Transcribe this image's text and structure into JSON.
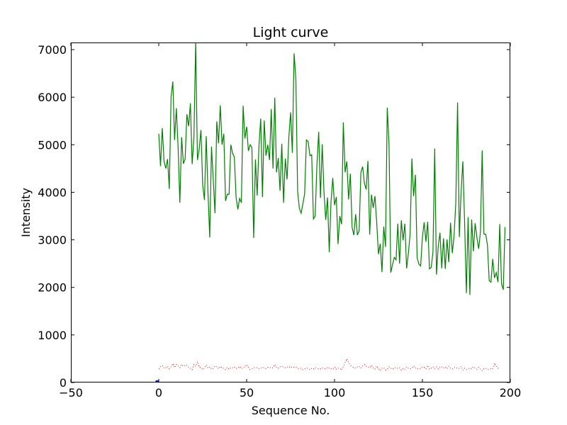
{
  "chart_data": {
    "type": "line",
    "title": "Light curve",
    "xlabel": "Sequence No.",
    "ylabel": "Intensity",
    "xlim": [
      -50,
      200
    ],
    "ylim": [
      0,
      7150
    ],
    "xticks": [
      "−50",
      "0",
      "50",
      "100",
      "150",
      "200"
    ],
    "yticks": [
      "0",
      "1000",
      "2000",
      "3000",
      "4000",
      "5000",
      "6000",
      "7000"
    ],
    "xtick_values": [
      -50,
      0,
      50,
      100,
      150,
      200
    ],
    "ytick_values": [
      0,
      1000,
      2000,
      3000,
      4000,
      5000,
      6000,
      7000
    ],
    "grid": false,
    "series": [
      {
        "style": "solid",
        "color": "#008000",
        "x_start": 0,
        "values": [
          5230,
          4550,
          5350,
          4650,
          4500,
          4700,
          4070,
          6000,
          6330,
          5100,
          5770,
          4950,
          3780,
          5160,
          4600,
          4700,
          5640,
          5390,
          5870,
          4590,
          5150,
          7150,
          4680,
          4900,
          5310,
          4150,
          3840,
          5180,
          3990,
          3050,
          4960,
          4270,
          3560,
          5490,
          5030,
          5830,
          5000,
          5230,
          3820,
          3960,
          3960,
          5000,
          4820,
          4740,
          3890,
          3640,
          3870,
          3780,
          5820,
          5130,
          5380,
          4870,
          5000,
          4940,
          3040,
          4690,
          3930,
          4970,
          5550,
          3900,
          5510,
          4770,
          5000,
          4680,
          5750,
          4500,
          5990,
          4420,
          4720,
          4030,
          5020,
          3780,
          4710,
          4270,
          5150,
          5680,
          4830,
          6920,
          6390,
          4020,
          3660,
          3560,
          3760,
          3970,
          5100,
          5070,
          4770,
          4790,
          3440,
          3500,
          4590,
          5270,
          3880,
          5010,
          4000,
          3420,
          3890,
          2740,
          3800,
          4300,
          3730,
          3900,
          2910,
          3500,
          3330,
          5470,
          4420,
          4650,
          3850,
          4390,
          3260,
          3100,
          3540,
          3100,
          3190,
          4420,
          4540,
          4190,
          4060,
          4660,
          3110,
          3950,
          3670,
          3920,
          3360,
          2700,
          2920,
          2320,
          3280,
          2850,
          5780,
          5020,
          2310,
          2480,
          2630,
          2580,
          3340,
          2500,
          3410,
          2990,
          3340,
          2400,
          2710,
          3120,
          4710,
          3920,
          4370,
          2620,
          2490,
          2450,
          3060,
          3370,
          2960,
          3380,
          2390,
          2420,
          2740,
          4920,
          2270,
          2870,
          3150,
          2400,
          3030,
          2390,
          3010,
          2530,
          3360,
          2720,
          3080,
          3780,
          5890,
          3060,
          4010,
          4650,
          3370,
          1880,
          3480,
          1840,
          3430,
          2760,
          3350,
          3050,
          2810,
          3160,
          4880,
          3120,
          3120,
          2890,
          2140,
          2110,
          2600,
          2200,
          2310,
          2110,
          3330,
          2080,
          1950,
          3270
        ]
      },
      {
        "style": "dotted",
        "color": "#ff0000",
        "x_start": 0,
        "values": [
          290,
          330,
          360,
          300,
          310,
          340,
          290,
          330,
          400,
          310,
          380,
          350,
          310,
          380,
          340,
          370,
          360,
          320,
          300,
          270,
          380,
          340,
          440,
          320,
          310,
          270,
          310,
          370,
          300,
          330,
          280,
          300,
          350,
          330,
          290,
          340,
          300,
          300,
          270,
          320,
          280,
          310,
          310,
          330,
          290,
          310,
          340,
          290,
          320,
          330,
          380,
          320,
          270,
          290,
          310,
          320,
          310,
          290,
          300,
          320,
          310,
          290,
          320,
          320,
          300,
          310,
          380,
          320,
          300,
          330,
          340,
          330,
          310,
          320,
          340,
          310,
          330,
          320,
          330,
          300,
          290,
          300,
          270,
          290,
          300,
          300,
          270,
          300,
          290,
          310,
          300,
          280,
          290,
          310,
          290,
          280,
          320,
          300,
          290,
          280,
          330,
          280,
          300,
          300,
          260,
          340,
          420,
          500,
          420,
          360,
          340,
          310,
          300,
          330,
          340,
          300,
          350,
          380,
          340,
          330,
          310,
          360,
          300,
          280,
          350,
          290,
          250,
          300,
          310,
          260,
          280,
          330,
          300,
          280,
          320,
          300,
          300,
          310,
          260,
          300,
          280,
          330,
          300,
          290,
          300,
          350,
          310,
          280,
          300,
          290,
          330,
          320,
          290,
          360,
          280,
          300,
          330,
          290,
          330,
          280,
          320,
          330,
          300,
          330,
          290,
          340,
          300,
          280,
          310,
          320,
          290,
          300,
          340,
          260,
          300,
          270,
          280,
          310,
          290,
          330,
          300,
          280,
          320,
          280,
          250,
          290,
          300,
          280,
          270,
          300,
          290,
          410,
          340,
          300,
          330
        ]
      }
    ],
    "marker": {
      "x": -1,
      "y": 0,
      "color": "#0000ff"
    }
  }
}
